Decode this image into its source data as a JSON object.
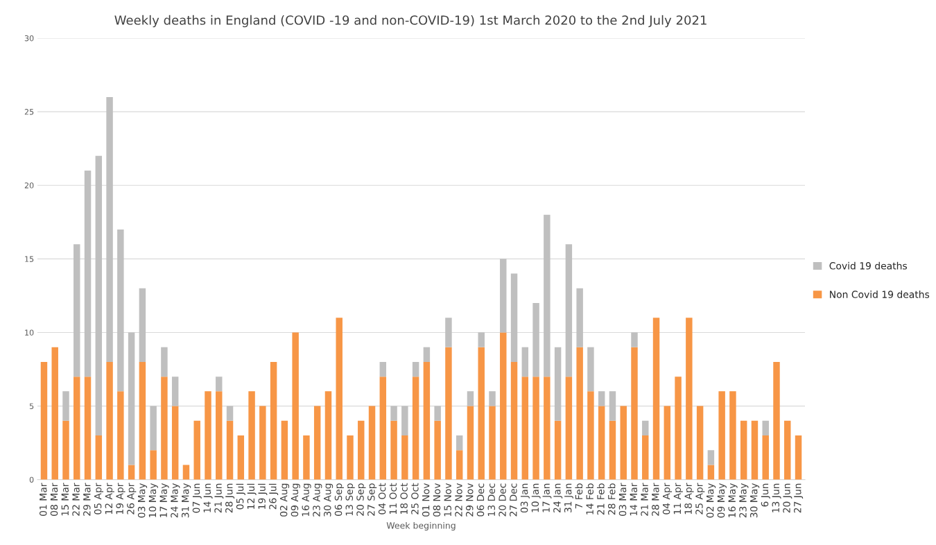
{
  "chart_data": {
    "type": "bar",
    "stacked": true,
    "title": "Weekly deaths in England (COVID -19 and non-COVID-19) 1st March 2020 to the 2nd July 2021",
    "xlabel": "Week beginning",
    "categories": [
      "01 Mar",
      "08 Mar",
      "15 Mar",
      "22 Mar",
      "29 Mar",
      "05 Apr",
      "12 Apr",
      "19 Apr",
      "26 Apr",
      "03 May",
      "10 May",
      "17 May",
      "24 May",
      "31 May",
      "07 Jun",
      "14 Jun",
      "21 Jun",
      "28 Jun",
      "05 Jul",
      "12 Jul",
      "19 Jul",
      "26 Jul",
      "02 Aug",
      "09 Aug",
      "16 Aug",
      "23 Aug",
      "30 Aug",
      "06 Sep",
      "13 Sep",
      "20 Sep",
      "27 Sep",
      "04 Oct",
      "11 Oct",
      "18 Oct",
      "25 Oct",
      "01 Nov",
      "08 Nov",
      "15 Nov",
      "22 Nov",
      "29 Nov",
      "06 Dec",
      "13 Dec",
      "20 Dec",
      "27 Dec",
      "03 Jan",
      "10 Jan",
      "17 Jan",
      "24 Jan",
      "31 Jan",
      "7 Feb",
      "14 Feb",
      "21 Feb",
      "28 Feb",
      "03 Mar",
      "14 Mar",
      "21 Mar",
      "28 Mar",
      "04 Apr",
      "11 Apr",
      "18 Apr",
      "25 Apr",
      "02 May",
      "09 May",
      "16 May",
      "23 May",
      "30 May",
      "6 Jun",
      "13 Jun",
      "20 Jun",
      "27 Jun"
    ],
    "series": [
      {
        "name": "Non Covid 19 deaths",
        "color": "#f79646",
        "values": [
          8,
          9,
          4,
          7,
          7,
          3,
          8,
          6,
          1,
          8,
          2,
          7,
          5,
          1,
          4,
          6,
          6,
          4,
          3,
          6,
          5,
          8,
          4,
          10,
          3,
          5,
          6,
          11,
          3,
          4,
          5,
          7,
          4,
          3,
          7,
          8,
          4,
          9,
          2,
          5,
          9,
          5,
          10,
          8,
          7,
          7,
          7,
          4,
          7,
          9,
          6,
          5,
          4,
          5,
          9,
          3,
          11,
          5,
          7,
          11,
          5,
          1,
          6,
          6,
          4,
          4,
          3,
          8,
          4,
          3
        ]
      },
      {
        "name": "Covid 19 deaths",
        "color": "#bfbfbf",
        "values": [
          0,
          0,
          2,
          9,
          14,
          19,
          18,
          11,
          9,
          5,
          3,
          2,
          2,
          0,
          0,
          0,
          1,
          1,
          0,
          0,
          0,
          0,
          0,
          0,
          0,
          0,
          0,
          0,
          0,
          0,
          0,
          1,
          1,
          2,
          1,
          1,
          1,
          2,
          1,
          1,
          1,
          1,
          5,
          6,
          2,
          5,
          11,
          5,
          9,
          4,
          3,
          1,
          2,
          0,
          1,
          1,
          0,
          0,
          0,
          0,
          0,
          1,
          0,
          0,
          0,
          0,
          1,
          0,
          0,
          0
        ]
      }
    ],
    "ylim": [
      0,
      30
    ],
    "yticks": [
      0,
      5,
      10,
      15,
      20,
      25,
      30
    ],
    "grid": "y",
    "legend": "right"
  }
}
